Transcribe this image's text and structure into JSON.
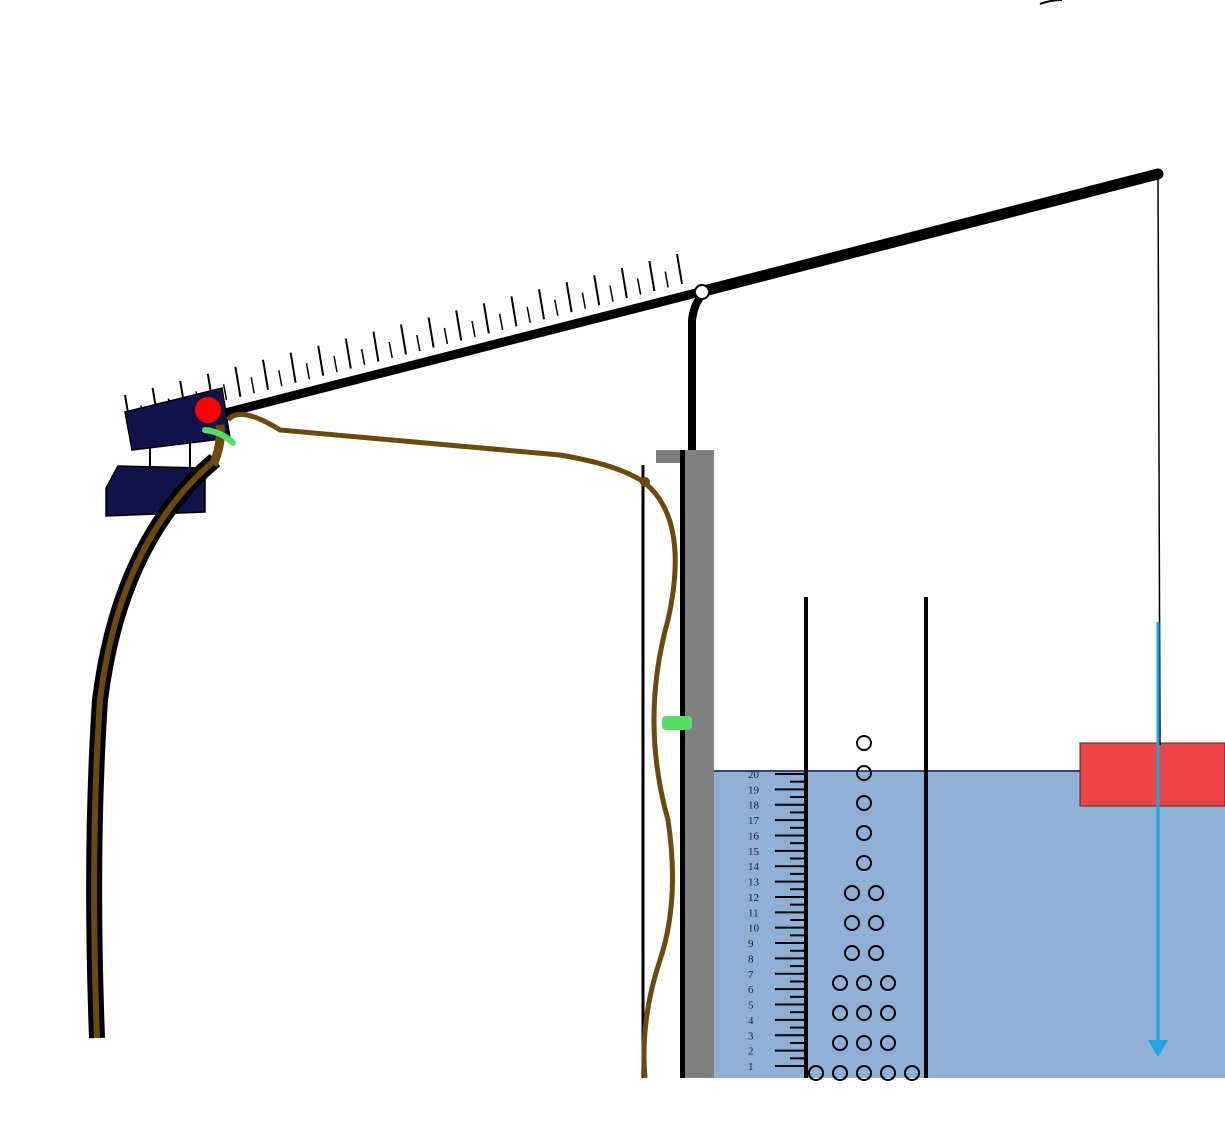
{
  "scale": {
    "labels": [
      "1",
      "2",
      "3",
      "4",
      "5",
      "6",
      "7",
      "8",
      "9",
      "10",
      "11",
      "12",
      "13",
      "14",
      "15",
      "16",
      "17",
      "18",
      "19",
      "20"
    ]
  },
  "colors": {
    "water": "#8fb0d4",
    "water_line": "#1a1a6b",
    "beam": "#000000",
    "post": "#808080",
    "hose": "#6b4a0a",
    "float": "#ee4444",
    "arrow": "#1aa6e6",
    "sensor_box": "#12124a",
    "pivot_dot": "#ff0000",
    "clip": "#55dd66"
  },
  "icons": {
    "arrow": "down-arrow-icon",
    "pivot": "pivot-circle-icon",
    "bubble": "bubble-circle-icon"
  },
  "bubble_rows": [
    5,
    3,
    3,
    3,
    2,
    2,
    2,
    1,
    1,
    1,
    1,
    1
  ]
}
